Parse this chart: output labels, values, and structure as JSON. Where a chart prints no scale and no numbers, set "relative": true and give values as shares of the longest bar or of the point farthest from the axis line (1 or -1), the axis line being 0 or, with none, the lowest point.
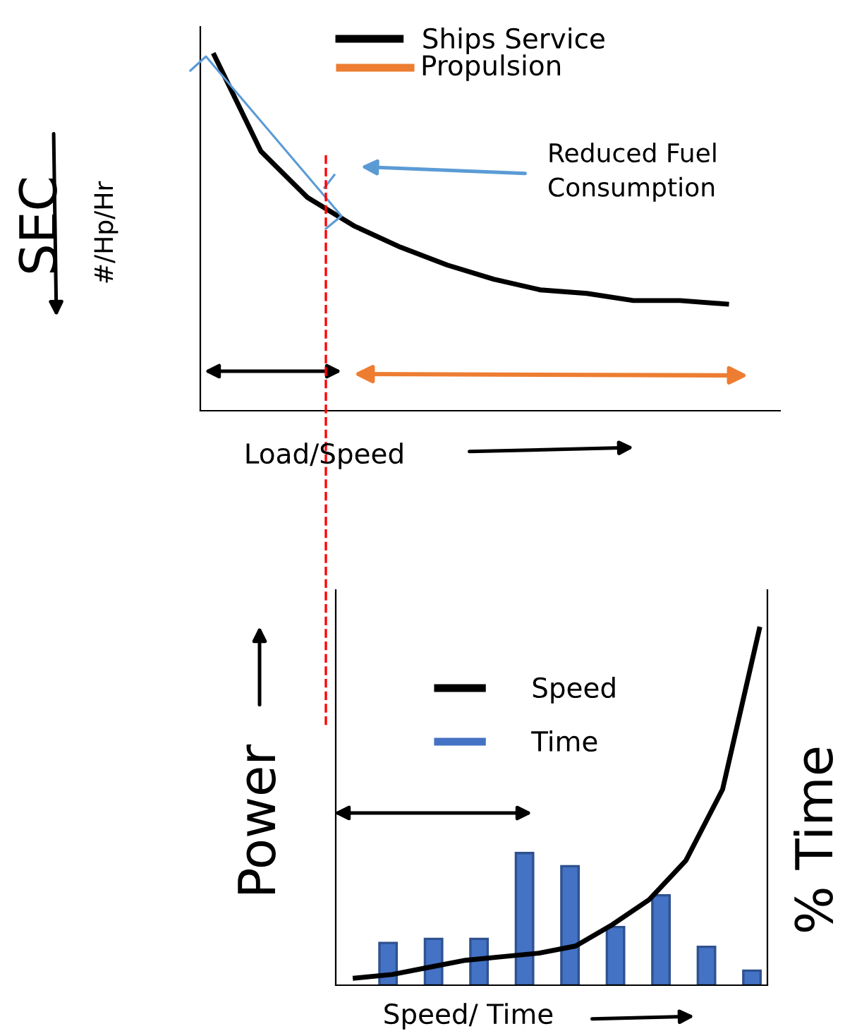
{
  "chart_data": [
    {
      "type": "line",
      "relative": true,
      "ylabel": "SEC",
      "xlabel": "Load/Speed",
      "legend": "top",
      "marker": "none",
      "line_style": "solid",
      "categories": [
        null,
        null,
        null,
        null,
        null,
        null,
        null,
        null,
        null,
        null,
        null,
        null
      ],
      "series": [
        {
          "name": "Ships Service",
          "color": "#000000",
          "values": [
            1.0,
            0.73,
            0.6,
            0.52,
            0.46,
            0.41,
            0.37,
            0.34,
            0.33,
            0.31,
            0.31,
            0.3
          ]
        }
      ],
      "annotations": [
        "Propulsion",
        "#/Hp/Hr",
        "Reduced Fuel\nConsumption"
      ]
    },
    {
      "type": "bar",
      "relative": true,
      "y2label": "% Time",
      "xlabel": "Speed/ Time",
      "legend": "top left",
      "categories": [
        null,
        null,
        null,
        null,
        null,
        null,
        null,
        null,
        null
      ],
      "series": [
        {
          "name": "Time",
          "color": "#4472c4",
          "values": [
            0.32,
            0.35,
            0.35,
            1.0,
            0.9,
            0.44,
            0.68,
            0.29,
            0.11
          ]
        }
      ]
    },
    {
      "type": "line",
      "relative": true,
      "ylabel": "Power",
      "legend": "top left",
      "marker": "none",
      "line_style": "solid",
      "categories": [
        null,
        null,
        null,
        null,
        null,
        null,
        null,
        null,
        null,
        null,
        null,
        null
      ],
      "series": [
        {
          "name": "Speed",
          "color": "#000000",
          "values": [
            0.02,
            0.03,
            0.05,
            0.07,
            0.08,
            0.09,
            0.11,
            0.17,
            0.24,
            0.35,
            0.55,
            1.0
          ]
        }
      ]
    }
  ]
}
